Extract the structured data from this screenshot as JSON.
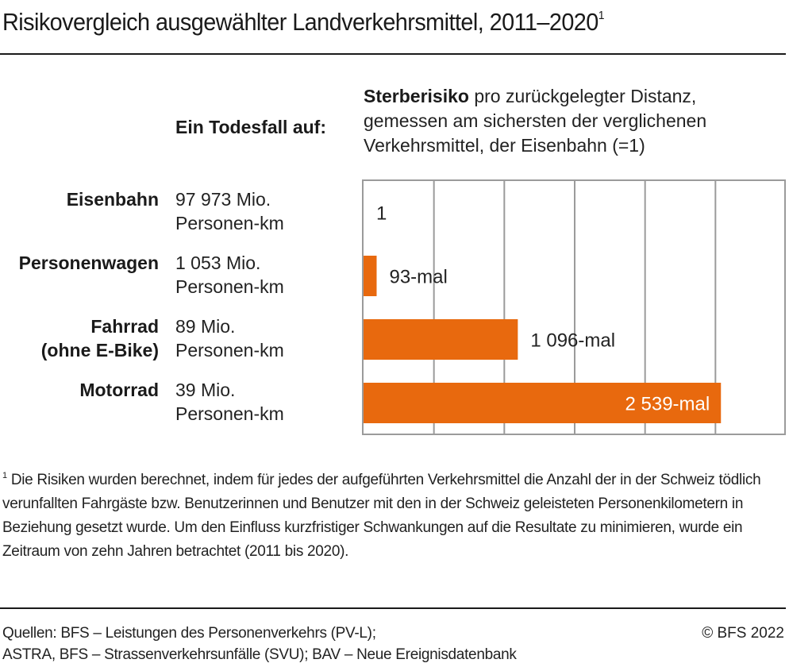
{
  "title": "Risikovergleich ausgewählter Landverkehrsmittel, 2011–2020",
  "title_footnote_marker": "1",
  "column_header": "Ein Todesfall auf:",
  "chart_header": {
    "bold": "Sterberisiko",
    "rest": " pro zurückgelegter Distanz, gemessen am sichersten der verglichenen Verkehrsmittel, der Eisenbahn (=1)"
  },
  "rows": [
    {
      "label_line1": "Eisenbahn",
      "label_line2": "",
      "value_line1": "97 973 Mio.",
      "value_line2": "Personen-km"
    },
    {
      "label_line1": "Personenwagen",
      "label_line2": "",
      "value_line1": "1 053 Mio.",
      "value_line2": "Personen-km"
    },
    {
      "label_line1": "Fahrrad",
      "label_line2": "(ohne E-Bike)",
      "value_line1": "89 Mio.",
      "value_line2": "Personen-km"
    },
    {
      "label_line1": "Motorrad",
      "label_line2": "",
      "value_line1": "39 Mio.",
      "value_line2": "Personen-km"
    }
  ],
  "chart_data": {
    "type": "bar",
    "orientation": "horizontal",
    "title": "Sterberisiko pro zurückgelegter Distanz, gemessen am sichersten der verglichenen Verkehrsmittel, der Eisenbahn (=1)",
    "categories": [
      "Eisenbahn",
      "Personenwagen",
      "Fahrrad (ohne E-Bike)",
      "Motorrad"
    ],
    "values": [
      1,
      93,
      1096,
      2539
    ],
    "data_labels": [
      "1",
      "93-mal",
      "1 096-mal",
      "2 539-mal"
    ],
    "xlabel": "",
    "ylabel": "",
    "xlim": [
      0,
      3000
    ],
    "grid_step": 500,
    "grid": true,
    "tick_labels_shown": false,
    "legend": "none",
    "colors": {
      "bar": "#e8690e",
      "grid": "#9b9b9b",
      "label": "#222222",
      "label_inside": "#ffffff"
    }
  },
  "footnote": {
    "marker": "1",
    "text": "Die Risiken wurden berechnet, indem für jedes der aufgeführten Verkehrsmittel die Anzahl der in der Schweiz tödlich verunfallten Fahrgäste bzw. Benutzerinnen und Benutzer mit den in der Schweiz geleisteten Personenkilometern in Beziehung gesetzt wurde. Um den Einfluss kurzfristiger Schwankungen auf die Resultate zu minimieren, wurde ein Zeitraum von zehn Jahren betrachtet (2011 bis 2020)."
  },
  "sources": {
    "line1": "Quellen: BFS – Leistungen des Personenverkehrs (PV-L);",
    "line2": "ASTRA, BFS – Strassenverkehrsunfälle (SVU); BAV – Neue Ereignisdatenbank"
  },
  "copyright": "© BFS 2022"
}
